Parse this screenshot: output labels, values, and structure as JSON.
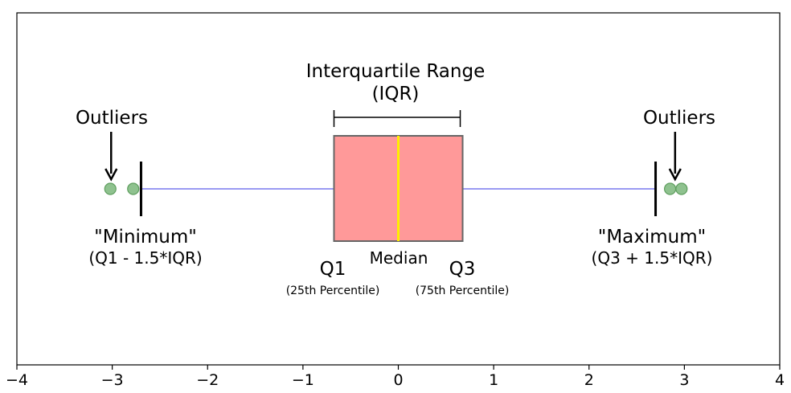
{
  "chart_data": {
    "type": "box",
    "xlim": [
      -4,
      4
    ],
    "x_ticks": [
      -4,
      -3,
      -2,
      -1,
      0,
      1,
      2,
      3,
      4
    ],
    "x_tick_labels": [
      "−4",
      "−3",
      "−2",
      "−1",
      "0",
      "1",
      "2",
      "3",
      "4"
    ],
    "grid": false,
    "box": {
      "q1": -0.6745,
      "median": 0,
      "q3": 0.6745,
      "whisker_low": -2.698,
      "whisker_high": 2.698,
      "outliers": [
        -3.02,
        -2.78,
        2.85,
        2.97
      ]
    },
    "colors": {
      "box_fill": "#ff9999",
      "box_edge": "#666666",
      "median_line": "#ffee00",
      "whisker_line": "#9a9af2",
      "outlier_fill": "#8fc28f",
      "outlier_edge": "#5e9e5e"
    },
    "annotations": {
      "iqr_title": "Interquartile Range",
      "iqr_sub": "(IQR)",
      "outliers_left": "Outliers",
      "outliers_right": "Outliers",
      "minimum": "\"Minimum\"",
      "minimum_formula": "(Q1 - 1.5*IQR)",
      "maximum": "\"Maximum\"",
      "maximum_formula": "(Q3 + 1.5*IQR)",
      "q1": "Q1",
      "q1_sub": "(25th Percentile)",
      "median": "Median",
      "q3": "Q3",
      "q3_sub": "(75th Percentile)"
    }
  }
}
